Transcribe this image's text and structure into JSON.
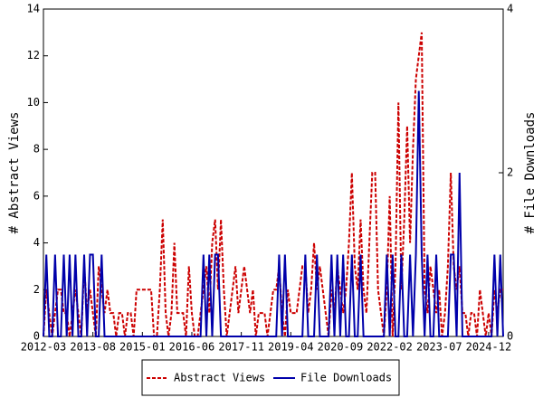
{
  "chart_data": {
    "type": "line",
    "ylabel": "# Abstract Views",
    "y2label": "# File Downloads",
    "categories": [
      "2012-03",
      null,
      null,
      null,
      null,
      null,
      null,
      null,
      null,
      null,
      null,
      null,
      null,
      null,
      null,
      null,
      null,
      "2013-08",
      null,
      null,
      null,
      null,
      null,
      null,
      null,
      null,
      null,
      null,
      null,
      null,
      null,
      null,
      null,
      null,
      "2015-01",
      null,
      null,
      null,
      null,
      null,
      null,
      null,
      null,
      null,
      null,
      null,
      null,
      null,
      null,
      null,
      null,
      "2016-06",
      null,
      null,
      null,
      null,
      null,
      null,
      null,
      null,
      null,
      null,
      null,
      null,
      null,
      null,
      null,
      null,
      "2017-11",
      null,
      null,
      null,
      null,
      null,
      null,
      null,
      null,
      null,
      null,
      null,
      null,
      null,
      null,
      null,
      null,
      "2019-04",
      null,
      null,
      null,
      null,
      null,
      null,
      null,
      null,
      null,
      null,
      null,
      null,
      null,
      null,
      null,
      null,
      "2020-09",
      null,
      null,
      null,
      null,
      null,
      null,
      null,
      null,
      null,
      null,
      null,
      null,
      null,
      null,
      null,
      null,
      "2022-02",
      null,
      null,
      null,
      null,
      null,
      null,
      null,
      null,
      null,
      null,
      null,
      null,
      null,
      null,
      null,
      null,
      "2023-07",
      null,
      null,
      null,
      null,
      null,
      null,
      null,
      null,
      null,
      null,
      null,
      null,
      null,
      null,
      null,
      null,
      "2024-12",
      null,
      null,
      null,
      null,
      null
    ],
    "series": [
      {
        "name": "Abstract Views",
        "color": "#cc0000",
        "dash": true,
        "axis": "y",
        "values": [
          0,
          2,
          1,
          0,
          1,
          2,
          2,
          1,
          1,
          0,
          1,
          2,
          1,
          0,
          3,
          1,
          2,
          1,
          0,
          3,
          2,
          1,
          2,
          1,
          1,
          0,
          1,
          1,
          0,
          1,
          1,
          0,
          2,
          2,
          2,
          2,
          2,
          2,
          0,
          0,
          2,
          5,
          1,
          0,
          1,
          4,
          1,
          1,
          1,
          0,
          3,
          1,
          0,
          0,
          1,
          2,
          3,
          1,
          4,
          5,
          2,
          5,
          2,
          0,
          1,
          2,
          3,
          1,
          2,
          3,
          2,
          1,
          2,
          0,
          1,
          1,
          1,
          0,
          1,
          2,
          2,
          3,
          1,
          0,
          2,
          1,
          1,
          1,
          2,
          3,
          3,
          1,
          2,
          4,
          2,
          3,
          2,
          1,
          0,
          2,
          1,
          3,
          2,
          1,
          2,
          4,
          7,
          3,
          2,
          5,
          2,
          1,
          4,
          7,
          7,
          2,
          1,
          0,
          2,
          6,
          0,
          3,
          10,
          2,
          5,
          9,
          4,
          8,
          11,
          12,
          13,
          2,
          1,
          3,
          2,
          1,
          2,
          0,
          1,
          3,
          7,
          3,
          2,
          3,
          1,
          1,
          0,
          1,
          1,
          0,
          2,
          1,
          0,
          1,
          0,
          2,
          1,
          2,
          2
        ]
      },
      {
        "name": "File Downloads",
        "color": "#0000aa",
        "dash": false,
        "axis": "y2",
        "values": [
          0,
          1,
          0,
          0,
          1,
          0,
          0,
          1,
          0,
          1,
          0,
          1,
          0,
          0,
          1,
          0,
          1,
          1,
          0,
          0,
          1,
          0,
          0,
          0,
          0,
          0,
          0,
          0,
          0,
          0,
          0,
          0,
          0,
          0,
          0,
          0,
          0,
          0,
          0,
          0,
          0,
          0,
          0,
          0,
          0,
          0,
          0,
          0,
          0,
          0,
          0,
          0,
          0,
          0,
          0,
          1,
          0,
          1,
          0,
          1,
          1,
          0,
          0,
          0,
          0,
          0,
          0,
          0,
          0,
          0,
          0,
          0,
          0,
          0,
          0,
          0,
          0,
          0,
          0,
          0,
          0,
          1,
          0,
          1,
          0,
          0,
          0,
          0,
          0,
          0,
          1,
          0,
          0,
          0,
          1,
          0,
          0,
          0,
          0,
          1,
          0,
          1,
          0,
          1,
          0,
          0,
          1,
          0,
          0,
          1,
          0,
          0,
          0,
          0,
          0,
          0,
          0,
          0,
          1,
          0,
          1,
          0,
          0,
          1,
          0,
          0,
          1,
          0,
          1,
          3,
          1,
          0,
          1,
          0,
          0,
          1,
          0,
          0,
          0,
          0,
          1,
          1,
          0,
          2,
          0,
          0,
          0,
          0,
          0,
          0,
          0,
          0,
          0,
          0,
          0,
          1,
          0,
          1,
          0
        ]
      }
    ],
    "ylim": [
      0,
      14
    ],
    "yticks": [
      0,
      2,
      4,
      6,
      8,
      10,
      12,
      14
    ],
    "y2lim": [
      0,
      4
    ],
    "y2ticks": [
      0,
      2,
      4
    ]
  }
}
